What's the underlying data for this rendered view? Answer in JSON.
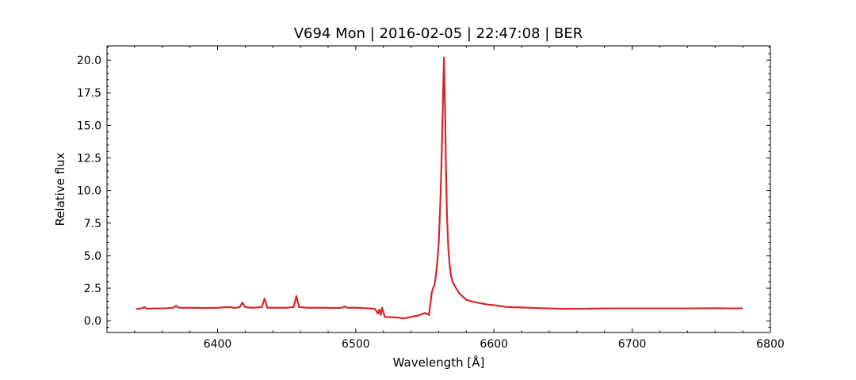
{
  "chart_data": {
    "type": "line",
    "title": "V694 Mon | 2016-02-05 | 22:47:08 | BER",
    "xlabel": "Wavelength [Å]",
    "ylabel": "Relative flux",
    "xlim": [
      6320,
      6800
    ],
    "ylim": [
      -0.9,
      21.1
    ],
    "x_ticks": [
      6400,
      6500,
      6600,
      6700,
      6800
    ],
    "y_ticks": [
      0.0,
      2.5,
      5.0,
      7.5,
      10.0,
      12.5,
      15.0,
      17.5,
      20.0
    ],
    "x_tick_labels": [
      "6400",
      "6500",
      "6600",
      "6700",
      "6800"
    ],
    "y_tick_labels": [
      "0.0",
      "2.5",
      "5.0",
      "7.5",
      "10.0",
      "12.5",
      "15.0",
      "17.5",
      "20.0"
    ],
    "grid": false,
    "series": [
      {
        "color": "#d62728",
        "x": [
          6341,
          6345,
          6347,
          6349,
          6355,
          6362,
          6368,
          6370,
          6372,
          6380,
          6390,
          6400,
          6408,
          6410,
          6412,
          6416,
          6418,
          6420,
          6425,
          6432,
          6434,
          6436,
          6440,
          6450,
          6455,
          6457,
          6459,
          6465,
          6475,
          6485,
          6490,
          6492,
          6494,
          6500,
          6510,
          6514,
          6516,
          6517,
          6518,
          6519,
          6521,
          6530,
          6535,
          6540,
          6545,
          6550,
          6553,
          6555,
          6557,
          6558,
          6559,
          6560,
          6561,
          6562,
          6563,
          6563.8,
          6564.5,
          6565.2,
          6566,
          6567,
          6568,
          6569,
          6570,
          6572,
          6575,
          6580,
          6585,
          6590,
          6595,
          6600,
          6605,
          6610,
          6620,
          6630,
          6640,
          6650,
          6660,
          6670,
          6680,
          6690,
          6700,
          6720,
          6740,
          6760,
          6770,
          6780
        ],
        "y": [
          0.9,
          0.95,
          1.05,
          0.92,
          0.95,
          0.95,
          1.0,
          1.15,
          1.0,
          1.0,
          0.98,
          1.0,
          1.05,
          1.05,
          0.98,
          1.05,
          1.4,
          1.05,
          1.0,
          1.05,
          1.7,
          1.0,
          1.0,
          1.0,
          1.05,
          1.9,
          1.05,
          1.0,
          1.0,
          0.98,
          1.0,
          1.1,
          1.0,
          1.0,
          0.95,
          0.9,
          0.55,
          0.85,
          0.45,
          1.0,
          0.3,
          0.25,
          0.18,
          0.3,
          0.4,
          0.6,
          0.45,
          2.2,
          2.8,
          3.5,
          4.5,
          6.0,
          8.5,
          12.0,
          16.5,
          20.2,
          17.0,
          12.0,
          8.0,
          5.5,
          4.2,
          3.4,
          3.0,
          2.6,
          2.1,
          1.6,
          1.45,
          1.35,
          1.25,
          1.2,
          1.12,
          1.05,
          1.02,
          0.98,
          0.95,
          0.92,
          0.92,
          0.93,
          0.95,
          0.95,
          0.95,
          0.95,
          0.95,
          0.96,
          0.95,
          0.95
        ]
      }
    ]
  }
}
